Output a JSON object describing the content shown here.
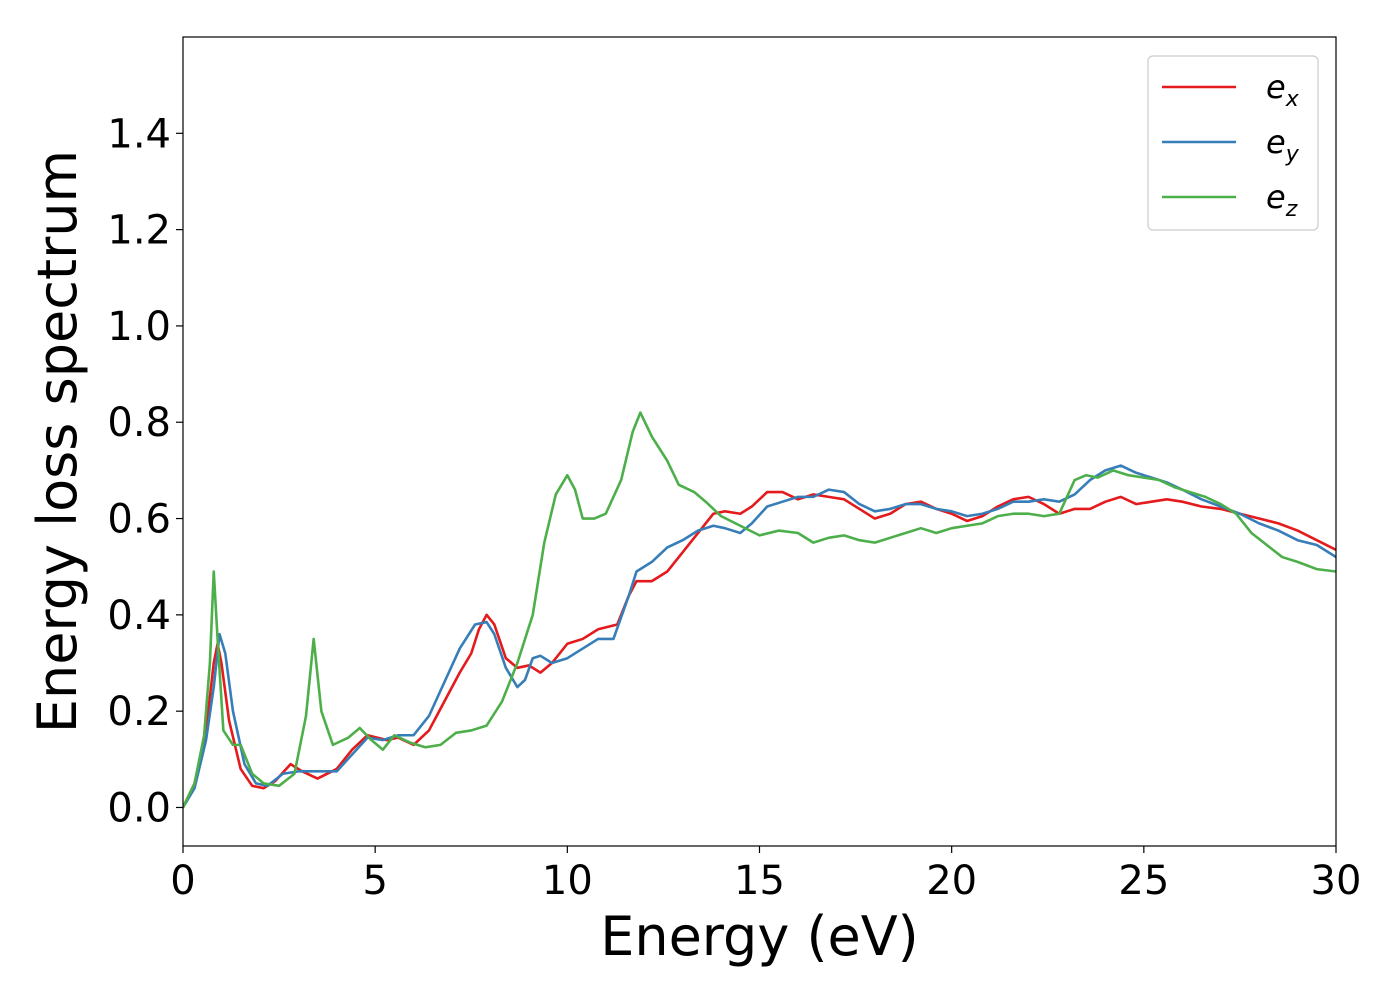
{
  "chart_data": {
    "type": "line",
    "title": "",
    "xlabel": "Energy (eV)",
    "ylabel": "Energy loss spectrum",
    "xlim": [
      0,
      30
    ],
    "ylim": [
      -0.08,
      1.6
    ],
    "xticks": [
      0,
      5,
      10,
      15,
      20,
      25,
      30
    ],
    "xtick_labels": [
      "0",
      "5",
      "10",
      "15",
      "20",
      "25",
      "30"
    ],
    "yticks": [
      0.0,
      0.2,
      0.4,
      0.6,
      0.8,
      1.0,
      1.2,
      1.4
    ],
    "ytick_labels": [
      "0.0",
      "0.2",
      "0.4",
      "0.6",
      "0.8",
      "1.0",
      "1.2",
      "1.4"
    ],
    "grid": false,
    "legend_position": "top-right",
    "series": [
      {
        "name": "ex",
        "legend_base": "e",
        "legend_sub": "x",
        "color": "#e41a1c",
        "points": [
          [
            0,
            0
          ],
          [
            0.3,
            0.05
          ],
          [
            0.6,
            0.16
          ],
          [
            0.8,
            0.3
          ],
          [
            0.9,
            0.34
          ],
          [
            1.0,
            0.3
          ],
          [
            1.2,
            0.18
          ],
          [
            1.5,
            0.08
          ],
          [
            1.8,
            0.045
          ],
          [
            2.1,
            0.04
          ],
          [
            2.4,
            0.055
          ],
          [
            2.8,
            0.09
          ],
          [
            3.1,
            0.075
          ],
          [
            3.5,
            0.06
          ],
          [
            4.0,
            0.08
          ],
          [
            4.4,
            0.12
          ],
          [
            4.8,
            0.15
          ],
          [
            5.3,
            0.14
          ],
          [
            5.6,
            0.145
          ],
          [
            6.0,
            0.13
          ],
          [
            6.4,
            0.16
          ],
          [
            6.8,
            0.22
          ],
          [
            7.2,
            0.28
          ],
          [
            7.5,
            0.32
          ],
          [
            7.7,
            0.37
          ],
          [
            7.9,
            0.4
          ],
          [
            8.1,
            0.38
          ],
          [
            8.4,
            0.31
          ],
          [
            8.7,
            0.29
          ],
          [
            9.0,
            0.295
          ],
          [
            9.3,
            0.28
          ],
          [
            9.6,
            0.3
          ],
          [
            10.0,
            0.34
          ],
          [
            10.4,
            0.35
          ],
          [
            10.8,
            0.37
          ],
          [
            11.3,
            0.38
          ],
          [
            11.6,
            0.44
          ],
          [
            11.8,
            0.47
          ],
          [
            12.2,
            0.47
          ],
          [
            12.6,
            0.49
          ],
          [
            13.0,
            0.53
          ],
          [
            13.5,
            0.58
          ],
          [
            13.8,
            0.61
          ],
          [
            14.1,
            0.615
          ],
          [
            14.5,
            0.61
          ],
          [
            14.8,
            0.625
          ],
          [
            15.2,
            0.655
          ],
          [
            15.6,
            0.655
          ],
          [
            16.0,
            0.64
          ],
          [
            16.4,
            0.65
          ],
          [
            16.8,
            0.645
          ],
          [
            17.2,
            0.64
          ],
          [
            17.6,
            0.62
          ],
          [
            18.0,
            0.6
          ],
          [
            18.4,
            0.61
          ],
          [
            18.8,
            0.63
          ],
          [
            19.2,
            0.635
          ],
          [
            19.6,
            0.62
          ],
          [
            20.0,
            0.61
          ],
          [
            20.4,
            0.595
          ],
          [
            20.8,
            0.605
          ],
          [
            21.2,
            0.625
          ],
          [
            21.6,
            0.64
          ],
          [
            22.0,
            0.645
          ],
          [
            22.4,
            0.63
          ],
          [
            22.8,
            0.61
          ],
          [
            23.2,
            0.62
          ],
          [
            23.6,
            0.62
          ],
          [
            24.0,
            0.635
          ],
          [
            24.4,
            0.645
          ],
          [
            24.8,
            0.63
          ],
          [
            25.2,
            0.635
          ],
          [
            25.6,
            0.64
          ],
          [
            26.0,
            0.635
          ],
          [
            26.5,
            0.625
          ],
          [
            27.0,
            0.62
          ],
          [
            27.5,
            0.61
          ],
          [
            28.0,
            0.6
          ],
          [
            28.5,
            0.59
          ],
          [
            29.0,
            0.575
          ],
          [
            29.5,
            0.555
          ],
          [
            30.0,
            0.535
          ]
        ]
      },
      {
        "name": "ey",
        "legend_base": "e",
        "legend_sub": "y",
        "color": "#377eb8",
        "points": [
          [
            0,
            0
          ],
          [
            0.3,
            0.04
          ],
          [
            0.6,
            0.14
          ],
          [
            0.8,
            0.25
          ],
          [
            0.95,
            0.36
          ],
          [
            1.1,
            0.32
          ],
          [
            1.3,
            0.2
          ],
          [
            1.6,
            0.09
          ],
          [
            1.9,
            0.05
          ],
          [
            2.2,
            0.045
          ],
          [
            2.6,
            0.07
          ],
          [
            3.0,
            0.075
          ],
          [
            3.5,
            0.075
          ],
          [
            4.0,
            0.075
          ],
          [
            4.4,
            0.11
          ],
          [
            4.8,
            0.145
          ],
          [
            5.2,
            0.14
          ],
          [
            5.6,
            0.15
          ],
          [
            6.0,
            0.15
          ],
          [
            6.4,
            0.19
          ],
          [
            6.8,
            0.26
          ],
          [
            7.2,
            0.33
          ],
          [
            7.6,
            0.38
          ],
          [
            7.9,
            0.385
          ],
          [
            8.1,
            0.36
          ],
          [
            8.4,
            0.29
          ],
          [
            8.7,
            0.25
          ],
          [
            8.9,
            0.265
          ],
          [
            9.1,
            0.31
          ],
          [
            9.3,
            0.315
          ],
          [
            9.6,
            0.3
          ],
          [
            10.0,
            0.31
          ],
          [
            10.4,
            0.33
          ],
          [
            10.8,
            0.35
          ],
          [
            11.2,
            0.35
          ],
          [
            11.6,
            0.44
          ],
          [
            11.8,
            0.49
          ],
          [
            12.2,
            0.51
          ],
          [
            12.6,
            0.54
          ],
          [
            13.0,
            0.555
          ],
          [
            13.4,
            0.575
          ],
          [
            13.8,
            0.585
          ],
          [
            14.1,
            0.58
          ],
          [
            14.5,
            0.57
          ],
          [
            14.8,
            0.59
          ],
          [
            15.2,
            0.625
          ],
          [
            15.6,
            0.635
          ],
          [
            16.0,
            0.645
          ],
          [
            16.4,
            0.645
          ],
          [
            16.8,
            0.66
          ],
          [
            17.2,
            0.655
          ],
          [
            17.6,
            0.63
          ],
          [
            18.0,
            0.615
          ],
          [
            18.4,
            0.62
          ],
          [
            18.8,
            0.63
          ],
          [
            19.2,
            0.63
          ],
          [
            19.6,
            0.62
          ],
          [
            20.0,
            0.615
          ],
          [
            20.4,
            0.605
          ],
          [
            20.8,
            0.61
          ],
          [
            21.2,
            0.62
          ],
          [
            21.6,
            0.635
          ],
          [
            22.0,
            0.635
          ],
          [
            22.4,
            0.64
          ],
          [
            22.8,
            0.635
          ],
          [
            23.2,
            0.65
          ],
          [
            23.6,
            0.68
          ],
          [
            24.0,
            0.7
          ],
          [
            24.4,
            0.71
          ],
          [
            24.8,
            0.695
          ],
          [
            25.2,
            0.685
          ],
          [
            25.6,
            0.675
          ],
          [
            26.0,
            0.66
          ],
          [
            26.5,
            0.64
          ],
          [
            27.0,
            0.625
          ],
          [
            27.5,
            0.61
          ],
          [
            28.0,
            0.59
          ],
          [
            28.5,
            0.575
          ],
          [
            29.0,
            0.555
          ],
          [
            29.5,
            0.545
          ],
          [
            30.0,
            0.52
          ]
        ]
      },
      {
        "name": "ez",
        "legend_base": "e",
        "legend_sub": "z",
        "color": "#4daf4a",
        "points": [
          [
            0,
            0
          ],
          [
            0.3,
            0.05
          ],
          [
            0.55,
            0.15
          ],
          [
            0.7,
            0.3
          ],
          [
            0.8,
            0.49
          ],
          [
            0.9,
            0.35
          ],
          [
            1.05,
            0.16
          ],
          [
            1.3,
            0.13
          ],
          [
            1.5,
            0.13
          ],
          [
            1.8,
            0.07
          ],
          [
            2.1,
            0.05
          ],
          [
            2.5,
            0.045
          ],
          [
            2.9,
            0.07
          ],
          [
            3.2,
            0.19
          ],
          [
            3.4,
            0.35
          ],
          [
            3.6,
            0.2
          ],
          [
            3.9,
            0.13
          ],
          [
            4.3,
            0.145
          ],
          [
            4.6,
            0.165
          ],
          [
            4.9,
            0.14
          ],
          [
            5.2,
            0.12
          ],
          [
            5.5,
            0.15
          ],
          [
            5.9,
            0.135
          ],
          [
            6.3,
            0.125
          ],
          [
            6.7,
            0.13
          ],
          [
            7.1,
            0.155
          ],
          [
            7.5,
            0.16
          ],
          [
            7.9,
            0.17
          ],
          [
            8.3,
            0.22
          ],
          [
            8.7,
            0.3
          ],
          [
            9.1,
            0.4
          ],
          [
            9.4,
            0.55
          ],
          [
            9.7,
            0.65
          ],
          [
            10.0,
            0.69
          ],
          [
            10.2,
            0.66
          ],
          [
            10.4,
            0.6
          ],
          [
            10.7,
            0.6
          ],
          [
            11.0,
            0.61
          ],
          [
            11.4,
            0.68
          ],
          [
            11.7,
            0.78
          ],
          [
            11.9,
            0.82
          ],
          [
            12.2,
            0.77
          ],
          [
            12.6,
            0.72
          ],
          [
            12.9,
            0.67
          ],
          [
            13.3,
            0.655
          ],
          [
            13.6,
            0.635
          ],
          [
            14.0,
            0.605
          ],
          [
            14.5,
            0.585
          ],
          [
            15.0,
            0.565
          ],
          [
            15.5,
            0.575
          ],
          [
            16.0,
            0.57
          ],
          [
            16.4,
            0.55
          ],
          [
            16.8,
            0.56
          ],
          [
            17.2,
            0.565
          ],
          [
            17.6,
            0.555
          ],
          [
            18.0,
            0.55
          ],
          [
            18.4,
            0.56
          ],
          [
            18.8,
            0.57
          ],
          [
            19.2,
            0.58
          ],
          [
            19.6,
            0.57
          ],
          [
            20.0,
            0.58
          ],
          [
            20.4,
            0.585
          ],
          [
            20.8,
            0.59
          ],
          [
            21.2,
            0.605
          ],
          [
            21.6,
            0.61
          ],
          [
            22.0,
            0.61
          ],
          [
            22.4,
            0.605
          ],
          [
            22.8,
            0.61
          ],
          [
            23.2,
            0.68
          ],
          [
            23.5,
            0.69
          ],
          [
            23.8,
            0.685
          ],
          [
            24.2,
            0.7
          ],
          [
            24.6,
            0.69
          ],
          [
            25.0,
            0.685
          ],
          [
            25.4,
            0.68
          ],
          [
            25.8,
            0.665
          ],
          [
            26.2,
            0.655
          ],
          [
            26.6,
            0.645
          ],
          [
            27.0,
            0.63
          ],
          [
            27.4,
            0.61
          ],
          [
            27.8,
            0.57
          ],
          [
            28.2,
            0.545
          ],
          [
            28.6,
            0.52
          ],
          [
            29.0,
            0.51
          ],
          [
            29.5,
            0.495
          ],
          [
            30.0,
            0.49
          ]
        ]
      }
    ]
  }
}
